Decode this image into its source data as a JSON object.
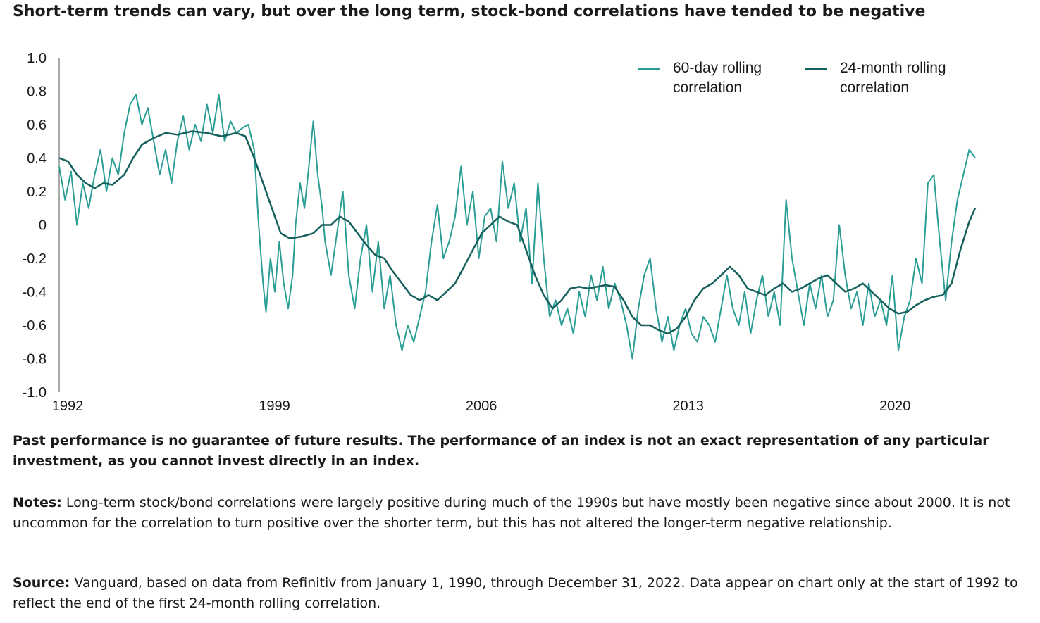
{
  "title": "Short-term trends can vary, but over the long term, stock-bond correlations have tended to be negative",
  "disclaimer": "Past performance is no guarantee of future results. The performance of an index is not an exact representation of any particular investment, as you cannot invest directly in an index.",
  "notes": {
    "label": "Notes:",
    "text": " Long-term stock/bond correlations were largely positive during much of the 1990s but have mostly been negative since about 2000. It is not uncommon for the correlation to turn positive over the shorter term, but this has not altered the longer-term negative relationship."
  },
  "source": {
    "label": "Source:",
    "text": " Vanguard, based on data from Refinitiv from January 1, 1990, through December 31, 2022. Data appear on chart only at the start of 1992 to reflect the end of the first 24-month rolling correlation."
  },
  "colors": {
    "series_60day": "#2a9d94",
    "series_24month": "#155f5c",
    "axis": "#555555"
  },
  "chart_data": {
    "type": "line",
    "title": "",
    "xlabel": "",
    "ylabel": "",
    "xlim": [
      1992,
      2023
    ],
    "ylim": [
      -1.0,
      1.0
    ],
    "x_ticks": [
      {
        "value": 1992,
        "label": "1992"
      },
      {
        "value": 1999,
        "label": "1999"
      },
      {
        "value": 2006,
        "label": "2006"
      },
      {
        "value": 2013,
        "label": "2013"
      },
      {
        "value": 2020,
        "label": "2020"
      }
    ],
    "y_ticks": [
      {
        "value": 1.0,
        "label": "1.0"
      },
      {
        "value": 0.8,
        "label": "0.8"
      },
      {
        "value": 0.6,
        "label": "0.6"
      },
      {
        "value": 0.4,
        "label": "0.4"
      },
      {
        "value": 0.2,
        "label": "0.2"
      },
      {
        "value": 0,
        "label": "0"
      },
      {
        "value": -0.2,
        "label": "-0.2"
      },
      {
        "value": -0.4,
        "label": "-0.4"
      },
      {
        "value": -0.6,
        "label": "-0.6"
      },
      {
        "value": -0.8,
        "label": "-0.8"
      },
      {
        "value": -1.0,
        "label": "-1.0"
      }
    ],
    "grid": false,
    "legend_position": "top-right",
    "series": [
      {
        "name": "60-day rolling correlation",
        "legend_lines": [
          "60-day rolling",
          "correlation"
        ],
        "color": "#2a9d94",
        "points": [
          [
            1992.0,
            0.35
          ],
          [
            1992.2,
            0.15
          ],
          [
            1992.4,
            0.32
          ],
          [
            1992.6,
            0.0
          ],
          [
            1992.8,
            0.25
          ],
          [
            1993.0,
            0.1
          ],
          [
            1993.2,
            0.3
          ],
          [
            1993.4,
            0.45
          ],
          [
            1993.6,
            0.2
          ],
          [
            1993.8,
            0.4
          ],
          [
            1994.0,
            0.3
          ],
          [
            1994.2,
            0.55
          ],
          [
            1994.4,
            0.72
          ],
          [
            1994.6,
            0.78
          ],
          [
            1994.8,
            0.6
          ],
          [
            1995.0,
            0.7
          ],
          [
            1995.2,
            0.5
          ],
          [
            1995.4,
            0.3
          ],
          [
            1995.6,
            0.45
          ],
          [
            1995.8,
            0.25
          ],
          [
            1996.0,
            0.5
          ],
          [
            1996.2,
            0.65
          ],
          [
            1996.4,
            0.45
          ],
          [
            1996.6,
            0.6
          ],
          [
            1996.8,
            0.5
          ],
          [
            1997.0,
            0.72
          ],
          [
            1997.2,
            0.55
          ],
          [
            1997.4,
            0.78
          ],
          [
            1997.6,
            0.5
          ],
          [
            1997.8,
            0.62
          ],
          [
            1998.0,
            0.55
          ],
          [
            1998.2,
            0.58
          ],
          [
            1998.4,
            0.6
          ],
          [
            1998.6,
            0.45
          ],
          [
            1998.75,
            0.0
          ],
          [
            1998.9,
            -0.35
          ],
          [
            1999.0,
            -0.52
          ],
          [
            1999.15,
            -0.2
          ],
          [
            1999.3,
            -0.4
          ],
          [
            1999.45,
            -0.1
          ],
          [
            1999.6,
            -0.35
          ],
          [
            1999.75,
            -0.5
          ],
          [
            1999.9,
            -0.3
          ],
          [
            2000.0,
            0.0
          ],
          [
            2000.15,
            0.25
          ],
          [
            2000.3,
            0.1
          ],
          [
            2000.45,
            0.35
          ],
          [
            2000.6,
            0.62
          ],
          [
            2000.75,
            0.3
          ],
          [
            2000.9,
            0.1
          ],
          [
            2001.0,
            -0.1
          ],
          [
            2001.2,
            -0.3
          ],
          [
            2001.4,
            -0.05
          ],
          [
            2001.6,
            0.2
          ],
          [
            2001.8,
            -0.3
          ],
          [
            2002.0,
            -0.5
          ],
          [
            2002.2,
            -0.2
          ],
          [
            2002.4,
            0.0
          ],
          [
            2002.6,
            -0.4
          ],
          [
            2002.8,
            -0.1
          ],
          [
            2003.0,
            -0.5
          ],
          [
            2003.2,
            -0.3
          ],
          [
            2003.4,
            -0.6
          ],
          [
            2003.6,
            -0.75
          ],
          [
            2003.8,
            -0.6
          ],
          [
            2004.0,
            -0.7
          ],
          [
            2004.2,
            -0.55
          ],
          [
            2004.4,
            -0.4
          ],
          [
            2004.6,
            -0.1
          ],
          [
            2004.8,
            0.12
          ],
          [
            2005.0,
            -0.2
          ],
          [
            2005.2,
            -0.1
          ],
          [
            2005.4,
            0.05
          ],
          [
            2005.6,
            0.35
          ],
          [
            2005.8,
            0.0
          ],
          [
            2006.0,
            0.2
          ],
          [
            2006.2,
            -0.2
          ],
          [
            2006.4,
            0.05
          ],
          [
            2006.6,
            0.1
          ],
          [
            2006.8,
            -0.1
          ],
          [
            2007.0,
            0.38
          ],
          [
            2007.2,
            0.1
          ],
          [
            2007.4,
            0.25
          ],
          [
            2007.6,
            -0.1
          ],
          [
            2007.8,
            0.1
          ],
          [
            2008.0,
            -0.35
          ],
          [
            2008.2,
            0.25
          ],
          [
            2008.4,
            -0.2
          ],
          [
            2008.6,
            -0.55
          ],
          [
            2008.8,
            -0.45
          ],
          [
            2009.0,
            -0.6
          ],
          [
            2009.2,
            -0.5
          ],
          [
            2009.4,
            -0.65
          ],
          [
            2009.6,
            -0.4
          ],
          [
            2009.8,
            -0.55
          ],
          [
            2010.0,
            -0.3
          ],
          [
            2010.2,
            -0.45
          ],
          [
            2010.4,
            -0.25
          ],
          [
            2010.6,
            -0.5
          ],
          [
            2010.8,
            -0.35
          ],
          [
            2011.0,
            -0.45
          ],
          [
            2011.2,
            -0.6
          ],
          [
            2011.4,
            -0.8
          ],
          [
            2011.6,
            -0.5
          ],
          [
            2011.8,
            -0.3
          ],
          [
            2012.0,
            -0.2
          ],
          [
            2012.2,
            -0.5
          ],
          [
            2012.4,
            -0.7
          ],
          [
            2012.6,
            -0.55
          ],
          [
            2012.8,
            -0.75
          ],
          [
            2013.0,
            -0.6
          ],
          [
            2013.2,
            -0.5
          ],
          [
            2013.4,
            -0.65
          ],
          [
            2013.6,
            -0.7
          ],
          [
            2013.8,
            -0.55
          ],
          [
            2014.0,
            -0.6
          ],
          [
            2014.2,
            -0.7
          ],
          [
            2014.4,
            -0.5
          ],
          [
            2014.6,
            -0.3
          ],
          [
            2014.8,
            -0.5
          ],
          [
            2015.0,
            -0.6
          ],
          [
            2015.2,
            -0.4
          ],
          [
            2015.4,
            -0.65
          ],
          [
            2015.6,
            -0.45
          ],
          [
            2015.8,
            -0.3
          ],
          [
            2016.0,
            -0.55
          ],
          [
            2016.2,
            -0.4
          ],
          [
            2016.4,
            -0.6
          ],
          [
            2016.6,
            0.15
          ],
          [
            2016.8,
            -0.2
          ],
          [
            2017.0,
            -0.4
          ],
          [
            2017.2,
            -0.6
          ],
          [
            2017.4,
            -0.35
          ],
          [
            2017.6,
            -0.5
          ],
          [
            2017.8,
            -0.3
          ],
          [
            2018.0,
            -0.55
          ],
          [
            2018.2,
            -0.45
          ],
          [
            2018.4,
            0.0
          ],
          [
            2018.6,
            -0.3
          ],
          [
            2018.8,
            -0.5
          ],
          [
            2019.0,
            -0.4
          ],
          [
            2019.2,
            -0.6
          ],
          [
            2019.4,
            -0.35
          ],
          [
            2019.6,
            -0.55
          ],
          [
            2019.8,
            -0.45
          ],
          [
            2020.0,
            -0.6
          ],
          [
            2020.2,
            -0.3
          ],
          [
            2020.4,
            -0.75
          ],
          [
            2020.6,
            -0.55
          ],
          [
            2020.8,
            -0.45
          ],
          [
            2021.0,
            -0.2
          ],
          [
            2021.2,
            -0.35
          ],
          [
            2021.4,
            0.25
          ],
          [
            2021.6,
            0.3
          ],
          [
            2021.8,
            -0.1
          ],
          [
            2022.0,
            -0.45
          ],
          [
            2022.2,
            -0.1
          ],
          [
            2022.4,
            0.15
          ],
          [
            2022.6,
            0.3
          ],
          [
            2022.8,
            0.45
          ],
          [
            2023.0,
            0.4
          ]
        ]
      },
      {
        "name": "24-month rolling correlation",
        "legend_lines": [
          "24-month rolling",
          "correlation"
        ],
        "color": "#155f5c",
        "points": [
          [
            1992.0,
            0.4
          ],
          [
            1992.3,
            0.38
          ],
          [
            1992.6,
            0.3
          ],
          [
            1992.9,
            0.25
          ],
          [
            1993.2,
            0.22
          ],
          [
            1993.5,
            0.25
          ],
          [
            1993.8,
            0.24
          ],
          [
            1994.2,
            0.3
          ],
          [
            1994.5,
            0.4
          ],
          [
            1994.8,
            0.48
          ],
          [
            1995.2,
            0.52
          ],
          [
            1995.6,
            0.55
          ],
          [
            1996.0,
            0.54
          ],
          [
            1996.5,
            0.56
          ],
          [
            1997.0,
            0.55
          ],
          [
            1997.5,
            0.53
          ],
          [
            1998.0,
            0.55
          ],
          [
            1998.3,
            0.53
          ],
          [
            1998.6,
            0.4
          ],
          [
            1998.9,
            0.25
          ],
          [
            1999.2,
            0.1
          ],
          [
            1999.5,
            -0.05
          ],
          [
            1999.8,
            -0.08
          ],
          [
            2000.2,
            -0.07
          ],
          [
            2000.6,
            -0.05
          ],
          [
            2000.9,
            0.0
          ],
          [
            2001.2,
            0.0
          ],
          [
            2001.5,
            0.05
          ],
          [
            2001.8,
            0.02
          ],
          [
            2002.1,
            -0.05
          ],
          [
            2002.4,
            -0.12
          ],
          [
            2002.7,
            -0.18
          ],
          [
            2003.0,
            -0.2
          ],
          [
            2003.3,
            -0.28
          ],
          [
            2003.6,
            -0.35
          ],
          [
            2003.9,
            -0.42
          ],
          [
            2004.2,
            -0.45
          ],
          [
            2004.5,
            -0.42
          ],
          [
            2004.8,
            -0.45
          ],
          [
            2005.1,
            -0.4
          ],
          [
            2005.4,
            -0.35
          ],
          [
            2005.7,
            -0.25
          ],
          [
            2006.0,
            -0.15
          ],
          [
            2006.3,
            -0.05
          ],
          [
            2006.6,
            0.0
          ],
          [
            2006.9,
            0.05
          ],
          [
            2007.2,
            0.02
          ],
          [
            2007.5,
            0.0
          ],
          [
            2007.8,
            -0.15
          ],
          [
            2008.1,
            -0.3
          ],
          [
            2008.4,
            -0.42
          ],
          [
            2008.7,
            -0.5
          ],
          [
            2009.0,
            -0.45
          ],
          [
            2009.3,
            -0.38
          ],
          [
            2009.6,
            -0.37
          ],
          [
            2009.9,
            -0.38
          ],
          [
            2010.2,
            -0.37
          ],
          [
            2010.5,
            -0.36
          ],
          [
            2010.8,
            -0.37
          ],
          [
            2011.1,
            -0.45
          ],
          [
            2011.4,
            -0.55
          ],
          [
            2011.7,
            -0.6
          ],
          [
            2012.0,
            -0.6
          ],
          [
            2012.3,
            -0.63
          ],
          [
            2012.6,
            -0.65
          ],
          [
            2012.9,
            -0.62
          ],
          [
            2013.2,
            -0.55
          ],
          [
            2013.5,
            -0.45
          ],
          [
            2013.8,
            -0.38
          ],
          [
            2014.1,
            -0.35
          ],
          [
            2014.4,
            -0.3
          ],
          [
            2014.7,
            -0.25
          ],
          [
            2015.0,
            -0.3
          ],
          [
            2015.3,
            -0.38
          ],
          [
            2015.6,
            -0.4
          ],
          [
            2015.9,
            -0.42
          ],
          [
            2016.2,
            -0.38
          ],
          [
            2016.5,
            -0.35
          ],
          [
            2016.8,
            -0.4
          ],
          [
            2017.1,
            -0.38
          ],
          [
            2017.4,
            -0.35
          ],
          [
            2017.7,
            -0.32
          ],
          [
            2018.0,
            -0.3
          ],
          [
            2018.3,
            -0.35
          ],
          [
            2018.6,
            -0.4
          ],
          [
            2018.9,
            -0.38
          ],
          [
            2019.2,
            -0.35
          ],
          [
            2019.5,
            -0.4
          ],
          [
            2019.8,
            -0.45
          ],
          [
            2020.1,
            -0.5
          ],
          [
            2020.4,
            -0.53
          ],
          [
            2020.7,
            -0.52
          ],
          [
            2021.0,
            -0.48
          ],
          [
            2021.3,
            -0.45
          ],
          [
            2021.6,
            -0.43
          ],
          [
            2021.9,
            -0.42
          ],
          [
            2022.2,
            -0.35
          ],
          [
            2022.5,
            -0.15
          ],
          [
            2022.8,
            0.02
          ],
          [
            2023.0,
            0.1
          ]
        ]
      }
    ]
  }
}
